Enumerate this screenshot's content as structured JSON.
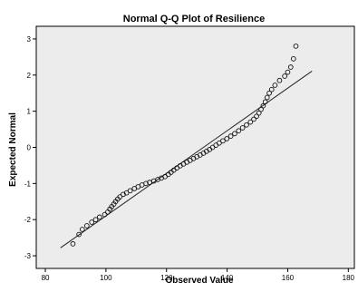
{
  "chart_data": {
    "type": "scatter",
    "title": "Normal Q-Q Plot of Resilience",
    "xlabel": "Observed Value",
    "ylabel": "Expected Normal",
    "xlim": [
      77,
      182
    ],
    "ylim": [
      -3.35,
      3.35
    ],
    "x_ticks": [
      80,
      100,
      120,
      140,
      160,
      180
    ],
    "y_ticks": [
      -3,
      -2,
      -1,
      0,
      1,
      2,
      3
    ],
    "grid": false,
    "legend": "none",
    "plot_background": "#ececec",
    "marker": "open-circle",
    "reference_line": {
      "x": [
        85,
        168
      ],
      "y": [
        -2.78,
        2.11
      ]
    },
    "points": [
      {
        "x": 89.1,
        "y": -2.67
      },
      {
        "x": 91.1,
        "y": -2.41
      },
      {
        "x": 92.2,
        "y": -2.27
      },
      {
        "x": 93.7,
        "y": -2.17
      },
      {
        "x": 95.3,
        "y": -2.07
      },
      {
        "x": 96.6,
        "y": -2.0
      },
      {
        "x": 97.9,
        "y": -1.93
      },
      {
        "x": 99.6,
        "y": -1.86
      },
      {
        "x": 100.6,
        "y": -1.79
      },
      {
        "x": 101.3,
        "y": -1.71
      },
      {
        "x": 101.9,
        "y": -1.64
      },
      {
        "x": 102.6,
        "y": -1.57
      },
      {
        "x": 103.2,
        "y": -1.5
      },
      {
        "x": 103.9,
        "y": -1.43
      },
      {
        "x": 104.6,
        "y": -1.37
      },
      {
        "x": 105.7,
        "y": -1.3
      },
      {
        "x": 106.8,
        "y": -1.26
      },
      {
        "x": 108.0,
        "y": -1.2
      },
      {
        "x": 109.4,
        "y": -1.14
      },
      {
        "x": 110.6,
        "y": -1.09
      },
      {
        "x": 111.9,
        "y": -1.04
      },
      {
        "x": 113.2,
        "y": -1.0
      },
      {
        "x": 114.4,
        "y": -0.97
      },
      {
        "x": 115.8,
        "y": -0.93
      },
      {
        "x": 117.1,
        "y": -0.89
      },
      {
        "x": 118.3,
        "y": -0.85
      },
      {
        "x": 119.5,
        "y": -0.81
      },
      {
        "x": 120.6,
        "y": -0.75
      },
      {
        "x": 121.5,
        "y": -0.69
      },
      {
        "x": 122.4,
        "y": -0.63
      },
      {
        "x": 123.4,
        "y": -0.57
      },
      {
        "x": 124.5,
        "y": -0.51
      },
      {
        "x": 125.6,
        "y": -0.46
      },
      {
        "x": 126.7,
        "y": -0.41
      },
      {
        "x": 127.8,
        "y": -0.36
      },
      {
        "x": 128.9,
        "y": -0.31
      },
      {
        "x": 130.0,
        "y": -0.26
      },
      {
        "x": 131.1,
        "y": -0.21
      },
      {
        "x": 132.2,
        "y": -0.16
      },
      {
        "x": 133.2,
        "y": -0.11
      },
      {
        "x": 134.2,
        "y": -0.06
      },
      {
        "x": 135.2,
        "y": 0.0
      },
      {
        "x": 136.3,
        "y": 0.06
      },
      {
        "x": 137.4,
        "y": 0.12
      },
      {
        "x": 138.6,
        "y": 0.18
      },
      {
        "x": 139.9,
        "y": 0.24
      },
      {
        "x": 141.2,
        "y": 0.31
      },
      {
        "x": 142.5,
        "y": 0.38
      },
      {
        "x": 143.8,
        "y": 0.46
      },
      {
        "x": 145.1,
        "y": 0.54
      },
      {
        "x": 146.4,
        "y": 0.62
      },
      {
        "x": 147.7,
        "y": 0.7
      },
      {
        "x": 148.8,
        "y": 0.78
      },
      {
        "x": 149.7,
        "y": 0.86
      },
      {
        "x": 150.5,
        "y": 0.95
      },
      {
        "x": 151.2,
        "y": 1.05
      },
      {
        "x": 151.9,
        "y": 1.15
      },
      {
        "x": 152.6,
        "y": 1.26
      },
      {
        "x": 153.2,
        "y": 1.38
      },
      {
        "x": 153.9,
        "y": 1.5
      },
      {
        "x": 154.7,
        "y": 1.6
      },
      {
        "x": 155.8,
        "y": 1.72
      },
      {
        "x": 157.3,
        "y": 1.85
      },
      {
        "x": 159.0,
        "y": 1.97
      },
      {
        "x": 160.0,
        "y": 2.08
      },
      {
        "x": 161.0,
        "y": 2.22
      },
      {
        "x": 161.9,
        "y": 2.45
      },
      {
        "x": 162.7,
        "y": 2.8
      }
    ]
  }
}
